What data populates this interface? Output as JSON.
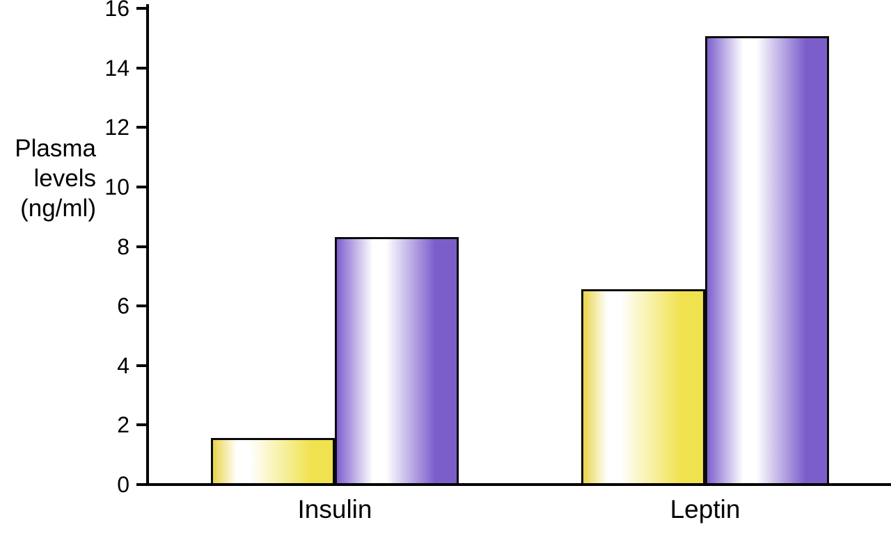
{
  "chart_data": {
    "type": "bar",
    "title": "",
    "xlabel": "",
    "ylabel": "Plasma levels (ng/ml)",
    "ylabel_lines": [
      "Plasma",
      "levels",
      "(ng/ml)"
    ],
    "categories": [
      "Insulin",
      "Leptin"
    ],
    "series": [
      {
        "name": "yellow-bars",
        "values": [
          1.5,
          6.5
        ],
        "color_left": "#ead44a",
        "color_right": "#f0e24e",
        "highlight_color": "#ffffff",
        "highlight_pos": 27
      },
      {
        "name": "purple-bars",
        "values": [
          8.25,
          15
        ],
        "color_left": "#7e60ce",
        "color_right": "#7c5ecb",
        "highlight_color": "#ffffff",
        "highlight_pos": 37
      }
    ],
    "ylim": [
      0,
      16
    ],
    "ytick_step": 2,
    "ytick_labels": [
      "0",
      "2",
      "4",
      "6",
      "8",
      "10",
      "12",
      "14",
      "16"
    ],
    "grid": "off",
    "legend": "none",
    "axis_color": "#000000",
    "background_color": "#ffffff"
  }
}
